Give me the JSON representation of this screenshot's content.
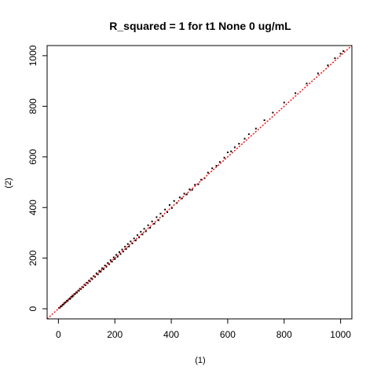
{
  "chart_data": {
    "type": "scatter",
    "title": "R_squared =  1 for t1 None 0 ug/mL",
    "xlabel": "(1)",
    "ylabel": "(2)",
    "xlim": [
      -40,
      1040
    ],
    "ylim": [
      -40,
      1040
    ],
    "x_ticks": [
      0,
      200,
      400,
      600,
      800,
      1000
    ],
    "y_ticks": [
      0,
      200,
      400,
      600,
      800,
      1000
    ],
    "x_tick_labels": [
      "0",
      "200",
      "400",
      "600",
      "800",
      "1000"
    ],
    "y_tick_labels": [
      "0",
      "200",
      "400",
      "600",
      "800",
      "1000"
    ],
    "grid": false,
    "point_color": "#000000",
    "reference_line": {
      "slope": 1,
      "intercept": 0,
      "color": "#ff0000",
      "style": "dotted"
    },
    "series": [
      {
        "points": [
          [
            2,
            3
          ],
          [
            5,
            4
          ],
          [
            8,
            9
          ],
          [
            10,
            11
          ],
          [
            12,
            10
          ],
          [
            15,
            16
          ],
          [
            18,
            17
          ],
          [
            20,
            22
          ],
          [
            22,
            21
          ],
          [
            25,
            26
          ],
          [
            28,
            27
          ],
          [
            30,
            32
          ],
          [
            33,
            31
          ],
          [
            36,
            37
          ],
          [
            40,
            41
          ],
          [
            42,
            39
          ],
          [
            45,
            47
          ],
          [
            48,
            46
          ],
          [
            50,
            52
          ],
          [
            53,
            51
          ],
          [
            56,
            58
          ],
          [
            60,
            59
          ],
          [
            63,
            65
          ],
          [
            66,
            64
          ],
          [
            70,
            72
          ],
          [
            73,
            71
          ],
          [
            76,
            79
          ],
          [
            80,
            78
          ],
          [
            84,
            86
          ],
          [
            88,
            85
          ],
          [
            92,
            95
          ],
          [
            96,
            93
          ],
          [
            100,
            103
          ],
          [
            104,
            101
          ],
          [
            108,
            111
          ],
          [
            112,
            108
          ],
          [
            116,
            120
          ],
          [
            120,
            117
          ],
          [
            125,
            129
          ],
          [
            130,
            126
          ],
          [
            135,
            140
          ],
          [
            140,
            136
          ],
          [
            145,
            150
          ],
          [
            150,
            146
          ],
          [
            155,
            160
          ],
          [
            160,
            156
          ],
          [
            165,
            171
          ],
          [
            170,
            166
          ],
          [
            175,
            181
          ],
          [
            180,
            176
          ],
          [
            185,
            192
          ],
          [
            190,
            186
          ],
          [
            196,
            203
          ],
          [
            200,
            196
          ],
          [
            205,
            213
          ],
          [
            210,
            206
          ],
          [
            216,
            224
          ],
          [
            220,
            216
          ],
          [
            226,
            234
          ],
          [
            230,
            226
          ],
          [
            236,
            245
          ],
          [
            240,
            236
          ],
          [
            246,
            256
          ],
          [
            250,
            246
          ],
          [
            256,
            266
          ],
          [
            262,
            258
          ],
          [
            268,
            278
          ],
          [
            274,
            270
          ],
          [
            280,
            291
          ],
          [
            286,
            282
          ],
          [
            292,
            304
          ],
          [
            298,
            294
          ],
          [
            304,
            316
          ],
          [
            310,
            306
          ],
          [
            318,
            330
          ],
          [
            325,
            320
          ],
          [
            332,
            345
          ],
          [
            340,
            336
          ],
          [
            348,
            362
          ],
          [
            355,
            350
          ],
          [
            362,
            376
          ],
          [
            370,
            366
          ],
          [
            378,
            392
          ],
          [
            386,
            382
          ],
          [
            394,
            410
          ],
          [
            402,
            398
          ],
          [
            410,
            426
          ],
          [
            420,
            418
          ],
          [
            430,
            440
          ],
          [
            438,
            436
          ],
          [
            446,
            455
          ],
          [
            455,
            452
          ],
          [
            465,
            472
          ],
          [
            474,
            470
          ],
          [
            484,
            490
          ],
          [
            496,
            492
          ],
          [
            506,
            510
          ],
          [
            518,
            516
          ],
          [
            530,
            538
          ],
          [
            545,
            555
          ],
          [
            560,
            565
          ],
          [
            572,
            580
          ],
          [
            588,
            597
          ],
          [
            600,
            618
          ],
          [
            612,
            622
          ],
          [
            625,
            638
          ],
          [
            640,
            652
          ],
          [
            660,
            672
          ],
          [
            675,
            690
          ],
          [
            700,
            712
          ],
          [
            730,
            745
          ],
          [
            760,
            775
          ],
          [
            800,
            815
          ],
          [
            840,
            852
          ],
          [
            880,
            890
          ],
          [
            920,
            930
          ],
          [
            955,
            962
          ],
          [
            980,
            990
          ],
          [
            1000,
            1008
          ],
          [
            1010,
            1018
          ]
        ]
      }
    ]
  }
}
